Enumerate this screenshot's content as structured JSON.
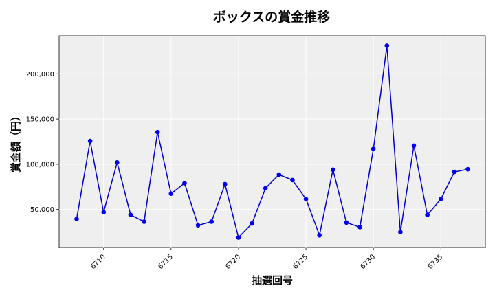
{
  "chart_data": {
    "type": "line",
    "title": "ボックスの賞金推移",
    "xlabel": "抽選回号",
    "ylabel": "賞金額（円）",
    "xlim": [
      6706.7,
      6738.3
    ],
    "ylim": [
      8000,
      242000
    ],
    "xticks": [
      6710,
      6715,
      6720,
      6725,
      6730,
      6735
    ],
    "xtick_labels": [
      "6710",
      "6715",
      "6720",
      "6725",
      "6730",
      "6735"
    ],
    "yticks": [
      50000,
      100000,
      150000,
      200000
    ],
    "ytick_labels": [
      "50,000",
      "100,000",
      "150,000",
      "200,000"
    ],
    "grid": true,
    "line_color": "#0000cc",
    "marker_color": "#0000ee",
    "plot_background": "#efefef",
    "x": [
      6708,
      6709,
      6710,
      6711,
      6712,
      6713,
      6714,
      6715,
      6716,
      6717,
      6718,
      6719,
      6720,
      6721,
      6722,
      6723,
      6724,
      6725,
      6726,
      6727,
      6728,
      6729,
      6730,
      6731,
      6732,
      6733,
      6734,
      6735,
      6736,
      6737
    ],
    "values": [
      39500,
      125700,
      47000,
      102000,
      44000,
      36500,
      135500,
      67500,
      79000,
      32500,
      36500,
      78000,
      19000,
      34500,
      73500,
      88500,
      82500,
      61500,
      21500,
      94000,
      35500,
      30500,
      117000,
      231000,
      25000,
      120500,
      44000,
      61500,
      91500,
      94500
    ]
  }
}
